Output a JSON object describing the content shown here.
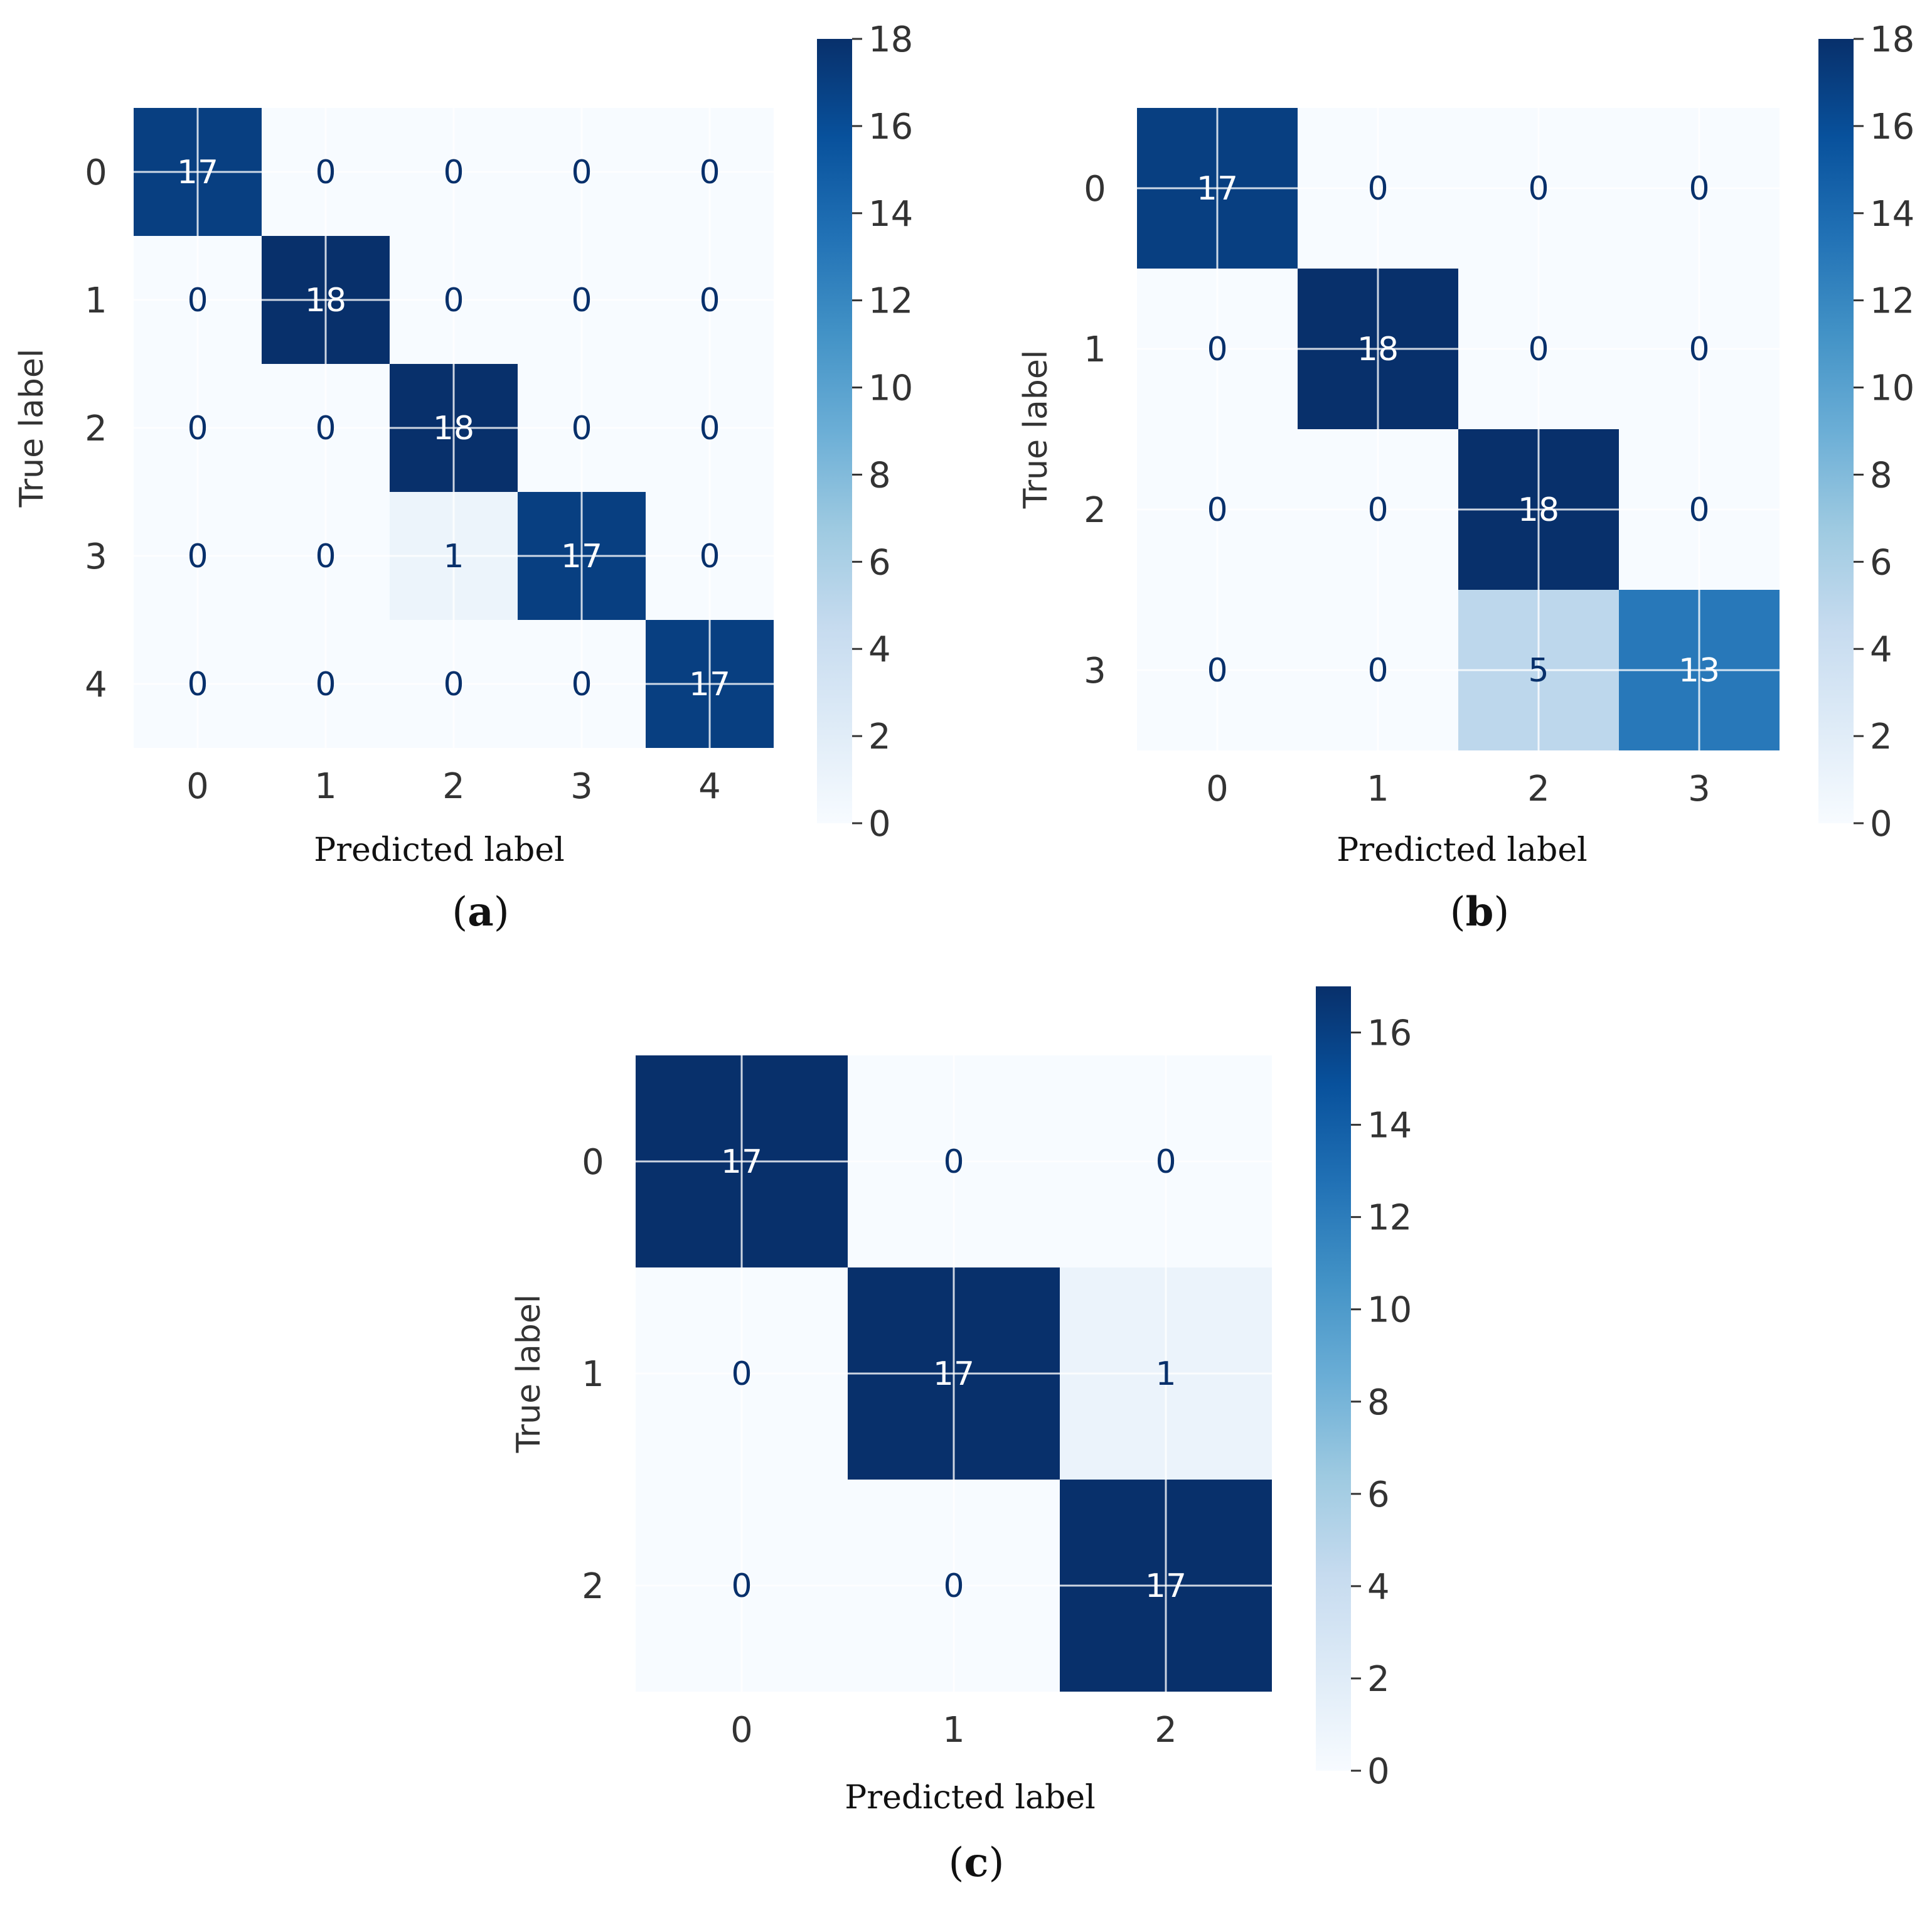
{
  "chart_data": [
    {
      "type": "heatmap",
      "panel_label": "(a)",
      "panel_letter": "a",
      "xlabel": "Predicted label",
      "ylabel": "True label",
      "categories": [
        "0",
        "1",
        "2",
        "3",
        "4"
      ],
      "matrix": [
        [
          17,
          0,
          0,
          0,
          0
        ],
        [
          0,
          18,
          0,
          0,
          0
        ],
        [
          0,
          0,
          18,
          0,
          0
        ],
        [
          0,
          0,
          1,
          17,
          0
        ],
        [
          0,
          0,
          0,
          0,
          17
        ]
      ],
      "colormap": "Blues",
      "colorbar_range": [
        0,
        18
      ],
      "colorbar_ticks": [
        0,
        2,
        4,
        6,
        8,
        10,
        12,
        14,
        16,
        18
      ]
    },
    {
      "type": "heatmap",
      "panel_label": "(b)",
      "panel_letter": "b",
      "xlabel": "Predicted label",
      "ylabel": "True label",
      "categories": [
        "0",
        "1",
        "2",
        "3"
      ],
      "matrix": [
        [
          17,
          0,
          0,
          0
        ],
        [
          0,
          18,
          0,
          0
        ],
        [
          0,
          0,
          18,
          0
        ],
        [
          0,
          0,
          5,
          13
        ]
      ],
      "colormap": "Blues",
      "colorbar_range": [
        0,
        18
      ],
      "colorbar_ticks": [
        0,
        2,
        4,
        6,
        8,
        10,
        12,
        14,
        16,
        18
      ]
    },
    {
      "type": "heatmap",
      "panel_label": "(c)",
      "panel_letter": "c",
      "xlabel": "Predicted label",
      "ylabel": "True label",
      "categories": [
        "0",
        "1",
        "2"
      ],
      "matrix": [
        [
          17,
          0,
          0
        ],
        [
          0,
          17,
          1
        ],
        [
          0,
          0,
          17
        ]
      ],
      "colormap": "Blues",
      "colorbar_range": [
        0,
        17
      ],
      "colorbar_ticks": [
        0,
        2,
        4,
        6,
        8,
        10,
        12,
        14,
        16
      ]
    }
  ],
  "colors": {
    "blues_low": "#f7fbff",
    "blues_high": "#08306b",
    "text_on_light": "#08306b",
    "text_on_dark": "#ffffff"
  }
}
